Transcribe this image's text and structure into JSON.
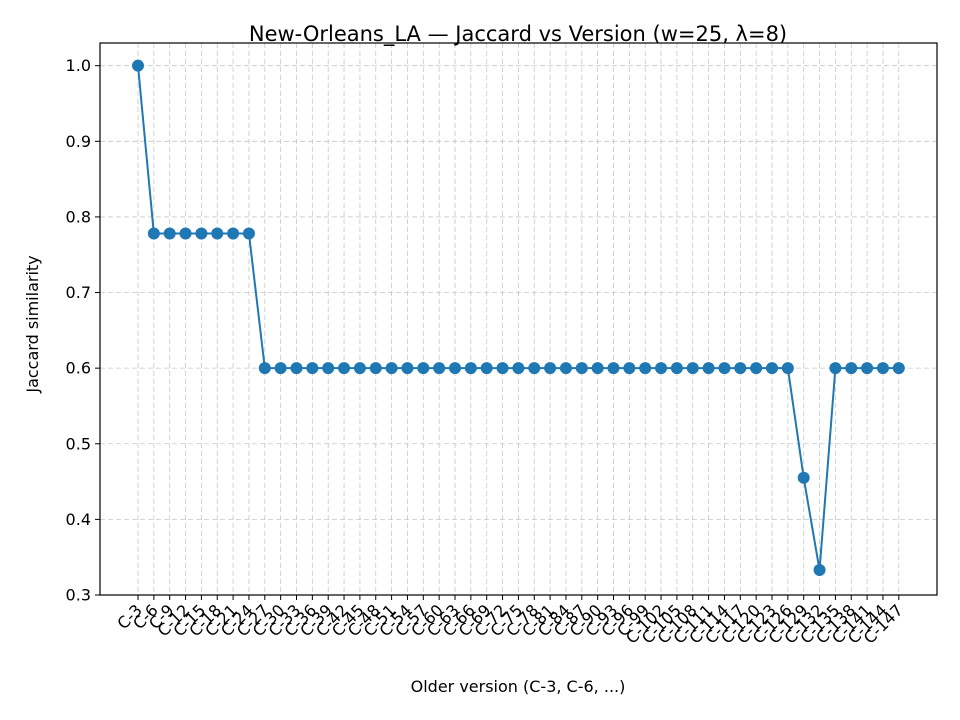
{
  "chart_data": {
    "type": "line",
    "title": "New-Orleans_LA — Jaccard vs Version (w=25, λ=8)",
    "xlabel": "Older version (C-3, C-6, ...)",
    "ylabel": "Jaccard similarity",
    "ylim": [
      0.3,
      1.03
    ],
    "yticks": [
      "0.3",
      "0.4",
      "0.5",
      "0.6",
      "0.7",
      "0.8",
      "0.9",
      "1.0"
    ],
    "grid": true,
    "color": "#1f77b4",
    "categories": [
      "C-3",
      "C-6",
      "C-9",
      "C-12",
      "C-15",
      "C-18",
      "C-21",
      "C-24",
      "C-27",
      "C-30",
      "C-33",
      "C-36",
      "C-39",
      "C-42",
      "C-45",
      "C-48",
      "C-51",
      "C-54",
      "C-57",
      "C-60",
      "C-63",
      "C-66",
      "C-69",
      "C-72",
      "C-75",
      "C-78",
      "C-81",
      "C-84",
      "C-87",
      "C-90",
      "C-93",
      "C-96",
      "C-99",
      "C-102",
      "C-105",
      "C-108",
      "C-111",
      "C-114",
      "C-117",
      "C-120",
      "C-123",
      "C-126",
      "C-129",
      "C-132",
      "C-135",
      "C-138",
      "C-141",
      "C-144",
      "C-147"
    ],
    "values": [
      1.0,
      0.778,
      0.778,
      0.778,
      0.778,
      0.778,
      0.778,
      0.778,
      0.6,
      0.6,
      0.6,
      0.6,
      0.6,
      0.6,
      0.6,
      0.6,
      0.6,
      0.6,
      0.6,
      0.6,
      0.6,
      0.6,
      0.6,
      0.6,
      0.6,
      0.6,
      0.6,
      0.6,
      0.6,
      0.6,
      0.6,
      0.6,
      0.6,
      0.6,
      0.6,
      0.6,
      0.6,
      0.6,
      0.6,
      0.6,
      0.6,
      0.6,
      0.455,
      0.333,
      0.6,
      0.6,
      0.6,
      0.6,
      0.6
    ]
  }
}
